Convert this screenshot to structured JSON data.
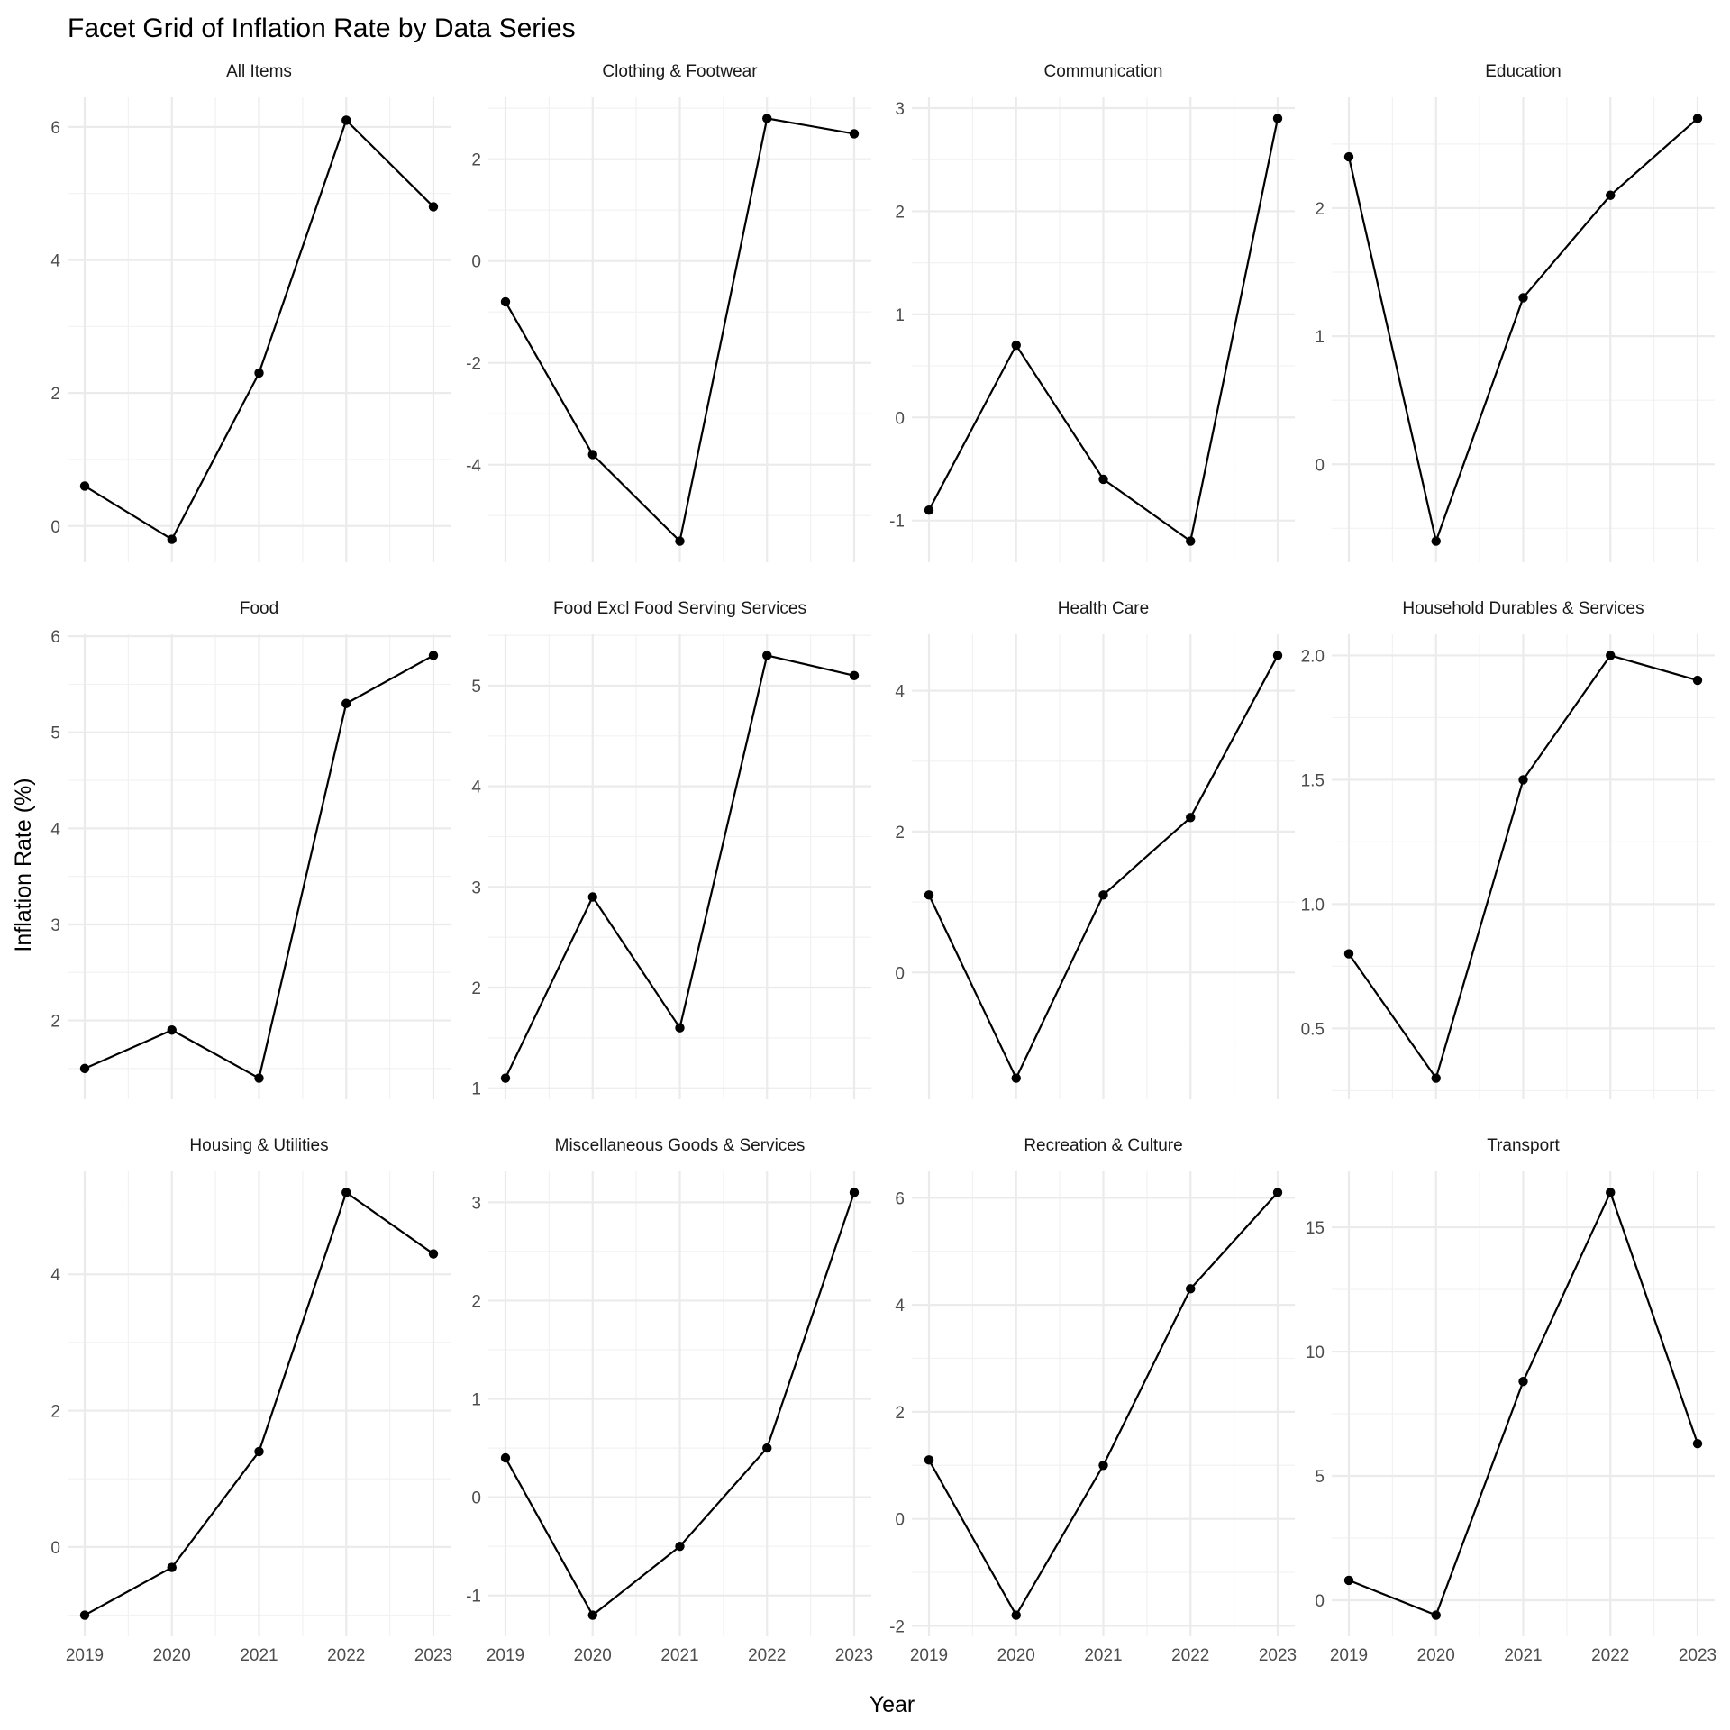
{
  "chart_data": {
    "type": "line",
    "title": "Facet Grid of Inflation Rate by Data Series",
    "xlabel": "Year",
    "ylabel": "Inflation Rate (%)",
    "grid": true,
    "x": [
      2019,
      2020,
      2021,
      2022,
      2023
    ],
    "facets": [
      {
        "name": "All Items",
        "values": [
          0.6,
          -0.2,
          2.3,
          6.1,
          4.8
        ],
        "ylim": [
          -0.545,
          6.445
        ],
        "yticks": [
          0,
          2,
          4,
          6
        ]
      },
      {
        "name": "Clothing & Footwear",
        "values": [
          -0.8,
          -3.8,
          -5.5,
          2.8,
          2.5
        ],
        "ylim": [
          -5.915,
          3.215
        ],
        "yticks": [
          -4,
          -2,
          0,
          2
        ]
      },
      {
        "name": "Communication",
        "values": [
          -0.9,
          0.7,
          -0.6,
          -1.2,
          2.9
        ],
        "ylim": [
          -1.405,
          3.105
        ],
        "yticks": [
          -1,
          0,
          1,
          2,
          3
        ]
      },
      {
        "name": "Education",
        "values": [
          2.4,
          -0.6,
          1.3,
          2.1,
          2.7
        ],
        "ylim": [
          -0.765,
          2.865
        ],
        "yticks": [
          0,
          1,
          2
        ]
      },
      {
        "name": "Food",
        "values": [
          1.5,
          1.9,
          1.4,
          5.3,
          5.8
        ],
        "ylim": [
          1.18,
          6.02
        ],
        "yticks": [
          2,
          3,
          4,
          5,
          6
        ]
      },
      {
        "name": "Food Excl Food Serving Services",
        "values": [
          1.1,
          2.9,
          1.6,
          5.3,
          5.1
        ],
        "ylim": [
          0.89,
          5.51
        ],
        "yticks": [
          1,
          2,
          3,
          4,
          5
        ]
      },
      {
        "name": "Health Care",
        "values": [
          1.1,
          -1.5,
          1.1,
          2.2,
          4.5
        ],
        "ylim": [
          -1.8,
          4.8
        ],
        "yticks": [
          0,
          2,
          4
        ]
      },
      {
        "name": "Household Durables & Services",
        "values": [
          0.8,
          0.3,
          1.5,
          2.0,
          1.9
        ],
        "ylim": [
          0.215,
          2.085
        ],
        "yticks": [
          0.5,
          1.0,
          1.5,
          2.0
        ],
        "yprec": 1
      },
      {
        "name": "Housing & Utilities",
        "values": [
          -1.0,
          -0.3,
          1.4,
          5.2,
          4.3
        ],
        "ylim": [
          -1.31,
          5.51
        ],
        "yticks": [
          0,
          2,
          4
        ]
      },
      {
        "name": "Miscellaneous Goods & Services",
        "values": [
          0.4,
          -1.2,
          -0.5,
          0.5,
          3.1
        ],
        "ylim": [
          -1.415,
          3.315
        ],
        "yticks": [
          -1,
          0,
          1,
          2,
          3
        ]
      },
      {
        "name": "Recreation & Culture",
        "values": [
          1.1,
          -1.8,
          1.0,
          4.3,
          6.1
        ],
        "ylim": [
          -2.195,
          6.495
        ],
        "yticks": [
          -2,
          0,
          2,
          4,
          6
        ]
      },
      {
        "name": "Transport",
        "values": [
          0.8,
          -0.6,
          8.8,
          16.4,
          6.3
        ],
        "ylim": [
          -1.45,
          17.25
        ],
        "yticks": [
          0,
          5,
          10,
          15
        ]
      }
    ]
  }
}
